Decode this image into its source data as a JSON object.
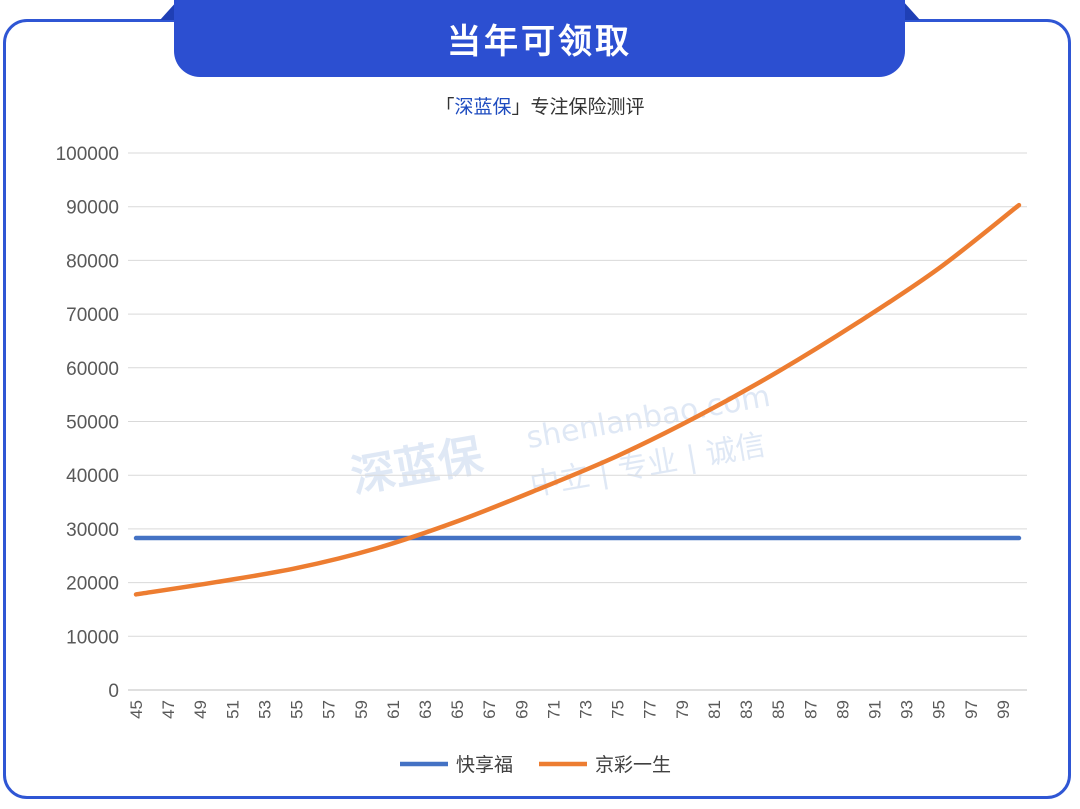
{
  "banner": {
    "title": "当年可领取"
  },
  "subtitle": {
    "prefix": "「",
    "brand": "深蓝保",
    "suffix": "」专注保险测评"
  },
  "watermark": {
    "logo": "深蓝保",
    "site": "shenlanbao.com",
    "slogan": "中立 | 专业 | 诚信"
  },
  "colors": {
    "accent": "#2c4fd1",
    "series1": "#4472c4",
    "series2": "#ed7d31"
  },
  "chart_data": {
    "type": "line",
    "title": "",
    "xlabel": "",
    "ylabel": "",
    "x_start": 45,
    "x_end": 100,
    "x_tick_labels": [
      "45",
      "47",
      "49",
      "51",
      "53",
      "55",
      "57",
      "59",
      "61",
      "63",
      "65",
      "67",
      "69",
      "71",
      "73",
      "75",
      "77",
      "79",
      "81",
      "83",
      "85",
      "87",
      "89",
      "91",
      "93",
      "95",
      "97",
      "99"
    ],
    "y_tick_labels": [
      "0",
      "10000",
      "20000",
      "30000",
      "40000",
      "50000",
      "60000",
      "70000",
      "80000",
      "90000",
      "100000"
    ],
    "ylim": [
      0,
      100000
    ],
    "grid": true,
    "legend": "bottom",
    "series": [
      {
        "name": "快享福",
        "color": "#4472c4",
        "x": [
          45,
          100
        ],
        "y": [
          28300,
          28300
        ]
      },
      {
        "name": "京彩一生",
        "color": "#ed7d31",
        "x": [
          45,
          50,
          55,
          60,
          65,
          70,
          75,
          80,
          85,
          90,
          95,
          100
        ],
        "y": [
          17800,
          20100,
          22700,
          26400,
          31400,
          37300,
          43600,
          51000,
          59300,
          68500,
          78500,
          90300
        ]
      }
    ]
  }
}
